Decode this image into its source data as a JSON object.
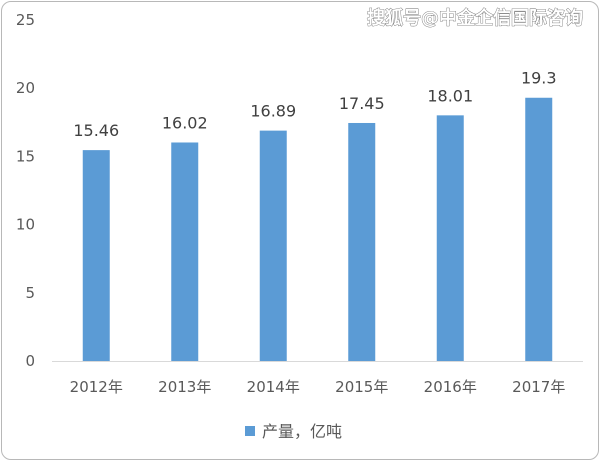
{
  "watermark": "搜狐号@中金企信国际咨询",
  "chart_data": {
    "type": "bar",
    "categories": [
      "2012年",
      "2013年",
      "2014年",
      "2015年",
      "2016年",
      "2017年"
    ],
    "series": [
      {
        "name": "产量，亿吨",
        "values": [
          15.46,
          16.02,
          16.89,
          17.45,
          18.01,
          19.3
        ]
      }
    ],
    "data_labels": [
      "15.46",
      "16.02",
      "16.89",
      "17.45",
      "18.01",
      "19.3"
    ],
    "y_ticks": [
      "0",
      "5",
      "10",
      "15",
      "20",
      "25"
    ],
    "ylim": [
      0,
      25
    ],
    "grid": false,
    "legend": "bottom",
    "colors": {
      "bar": "#5b9bd5",
      "axis": "#d9d9d9",
      "text": "#595959"
    }
  }
}
